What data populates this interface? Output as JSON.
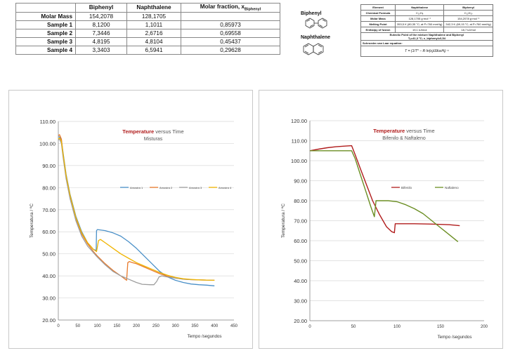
{
  "mix_table": {
    "headers": [
      "",
      "Biphenyl",
      "Naphthalene",
      "Molar fraction, x",
      "Biphenyl"
    ],
    "rows": [
      {
        "label": "Molar Mass",
        "biphenyl": "154,2078",
        "naphthalene": "128,1705",
        "fraction": ""
      },
      {
        "label": "Sample 1",
        "biphenyl": "8,1200",
        "naphthalene": "1,1011",
        "fraction": "0,85973"
      },
      {
        "label": "Sample 2",
        "biphenyl": "7,3446",
        "naphthalene": "2,6716",
        "fraction": "0,69558"
      },
      {
        "label": "Sample 3",
        "biphenyl": "4,8195",
        "naphthalene": "4,8104",
        "fraction": "0,45437"
      },
      {
        "label": "Sample 4",
        "biphenyl": "3,3403",
        "naphthalene": "6,5941",
        "fraction": "0,29628"
      }
    ]
  },
  "structures": {
    "biphenyl": "Biphenyl",
    "naphthalene": "Naphthalene"
  },
  "prop_table": {
    "headers": [
      "Element",
      "Naphthalene",
      "Biphenyl"
    ],
    "rows": [
      {
        "label": "Chemical Formula",
        "naph": "C₁₀H₈",
        "biph": "C₁₂H₁₀"
      },
      {
        "label": "Molar Mass",
        "naph": "128,1705 g·mol⁻¹",
        "biph": "154,2078 g·mol⁻¹"
      },
      {
        "label": "Melting Point",
        "naph": "353,5 K (80,35 °C; at P=760 mmHg)",
        "biph": "342,3 K (69,15 °C; at P=760 mmHg)"
      },
      {
        "label": "Enthalpy of fusion",
        "naph": "19,1 kJ/mol",
        "biph": "18,7 kJ/mol"
      }
    ],
    "eutectic_line1": "Eutectic Point of the mixture Naphthalene and Biphenyl",
    "eutectic_line2": "Tₑ=41,3 °C; x_biphenyl=0,54",
    "schroeder": "Schroeder-van Laar equation:",
    "equation": "T = (1/T* − R·ln(xᵢ)/ΔfusHᵢ)⁻¹"
  },
  "chart_data": [
    {
      "type": "line",
      "title": "Temperature versus Time",
      "title_bold": "Temperature",
      "title_rest": " versus Time",
      "subtitle": "Misturas",
      "xlabel": "Tempo /segundos",
      "ylabel": "Temperatura / ºC",
      "xlim": [
        0,
        450
      ],
      "ylim": [
        20,
        110
      ],
      "xticks": [
        "0",
        "50",
        "100",
        "150",
        "200",
        "250",
        "300",
        "350",
        "400",
        "450"
      ],
      "yticks": [
        "20.00",
        "30.00",
        "40.00",
        "50.00",
        "60.00",
        "70.00",
        "80.00",
        "90.00",
        "100.00",
        "110.00"
      ],
      "legend_position": "center-right",
      "series": [
        {
          "name": "Amostra 1",
          "color": "#4a90c8",
          "x": [
            0,
            3,
            8,
            12,
            20,
            30,
            45,
            60,
            75,
            90,
            97,
            98,
            100,
            120,
            140,
            160,
            180,
            200,
            220,
            240,
            260,
            280,
            300,
            320,
            340,
            360,
            380,
            400
          ],
          "y": [
            103,
            103,
            101.5,
            96,
            86,
            77,
            67,
            60,
            55,
            52,
            51.5,
            60.5,
            61,
            60.5,
            59.5,
            58,
            55.5,
            52.5,
            49,
            45.5,
            42,
            39.5,
            38,
            37,
            36.3,
            36,
            35.8,
            35.5
          ]
        },
        {
          "name": "Amostra 2",
          "color": "#e87a2c",
          "x": [
            0,
            3,
            8,
            12,
            20,
            30,
            45,
            60,
            75,
            90,
            100,
            120,
            140,
            160,
            175,
            178,
            182,
            190,
            200,
            220,
            240,
            260,
            280,
            300,
            320,
            340,
            360,
            380,
            400
          ],
          "y": [
            103.5,
            104,
            102,
            95,
            85,
            76,
            66,
            59,
            54.5,
            51,
            49,
            45.5,
            42.5,
            40,
            38,
            46,
            46.5,
            46,
            45.5,
            44,
            42.5,
            41,
            39.8,
            39,
            38.5,
            38.3,
            38.2,
            38.1,
            38
          ]
        },
        {
          "name": "Amostra 3",
          "color": "#9e9e9e",
          "x": [
            0,
            3,
            8,
            12,
            20,
            30,
            45,
            60,
            75,
            90,
            100,
            120,
            140,
            160,
            180,
            200,
            215,
            235,
            245,
            252,
            258,
            265,
            280,
            300,
            320,
            340,
            360,
            380,
            400
          ],
          "y": [
            101.5,
            102,
            100,
            94,
            84,
            75,
            65,
            58,
            53.5,
            50.5,
            48.5,
            45,
            42,
            40,
            38.5,
            37,
            36.2,
            36,
            36,
            37.5,
            39.5,
            40,
            39.5,
            39,
            38.5,
            38.3,
            38.2,
            38.1,
            38
          ]
        },
        {
          "name": "Amostra 4",
          "color": "#f0b400",
          "x": [
            0,
            3,
            8,
            12,
            20,
            30,
            45,
            60,
            75,
            90,
            98,
            103,
            108,
            120,
            140,
            160,
            180,
            200,
            220,
            240,
            260,
            280,
            300,
            320,
            340,
            360,
            380,
            400
          ],
          "y": [
            102,
            102.5,
            101,
            95.5,
            85.5,
            76.5,
            66.5,
            59.5,
            55,
            52,
            51,
            56,
            56.5,
            55,
            52.5,
            50,
            48,
            46,
            44.5,
            43,
            41.5,
            40.3,
            39.3,
            38.7,
            38.4,
            38.2,
            38.1,
            38
          ]
        }
      ]
    },
    {
      "type": "line",
      "title": "Temperature versus Time",
      "title_bold": "Temperature",
      "title_rest": " versus Time",
      "subtitle": "Bifenilo & Naftaleno",
      "xlabel": "Tempo /segundos",
      "ylabel": "Temperatura / ºC",
      "xlim": [
        0,
        200
      ],
      "ylim": [
        20,
        120
      ],
      "xticks": [
        "0",
        "50",
        "100",
        "150",
        "200"
      ],
      "yticks": [
        "20.00",
        "30.00",
        "40.00",
        "50.00",
        "60.00",
        "70.00",
        "80.00",
        "90.00",
        "100.00",
        "110.00",
        "120.00"
      ],
      "legend_position": "center",
      "series": [
        {
          "name": "Bifenilo",
          "color": "#b01c1c",
          "x": [
            0,
            10,
            20,
            30,
            40,
            48,
            52,
            58,
            65,
            72,
            80,
            88,
            94,
            97,
            98,
            105,
            120,
            140,
            160,
            172
          ],
          "y": [
            105,
            105.8,
            106.5,
            107,
            107.3,
            107.5,
            103,
            96,
            88,
            80,
            73,
            67,
            64.5,
            64,
            68.5,
            68.5,
            68.5,
            68.3,
            68,
            67.5
          ]
        },
        {
          "name": "Naftaleno",
          "color": "#6b8e23",
          "x": [
            0,
            10,
            20,
            30,
            40,
            48,
            52,
            58,
            64,
            70,
            74,
            76,
            80,
            90,
            100,
            110,
            120,
            130,
            140,
            150,
            160,
            170
          ],
          "y": [
            105,
            105,
            105,
            105,
            105,
            105,
            101,
            93,
            85,
            77,
            72,
            80,
            80,
            80,
            79.5,
            78,
            76,
            73.5,
            70,
            66.5,
            63,
            59.5
          ]
        }
      ]
    }
  ]
}
